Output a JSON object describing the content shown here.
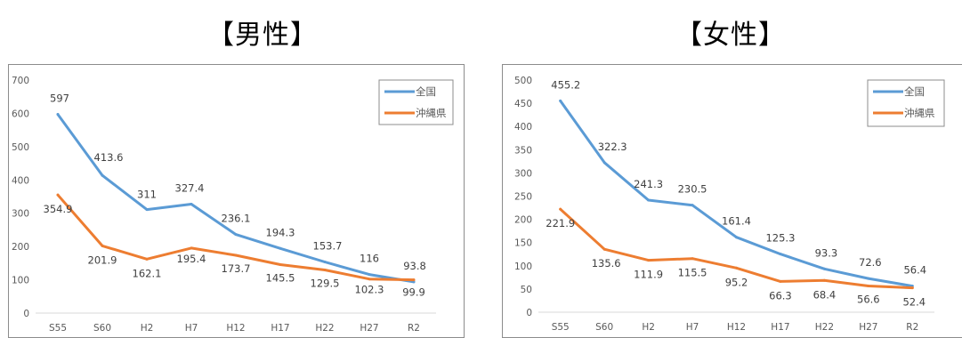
{
  "headings": {
    "left": "【男性】",
    "right": "【女性】"
  },
  "colors": {
    "national": "#5b9bd5",
    "okinawa": "#ed7d31",
    "axis": "#d9d9d9",
    "frame": "#8c8c8c"
  },
  "chart_data": [
    {
      "type": "line",
      "title": "",
      "categories": [
        "S55",
        "S60",
        "H2",
        "H7",
        "H12",
        "H17",
        "H22",
        "H27",
        "R2"
      ],
      "ylim": [
        0,
        700
      ],
      "yticks": [
        0,
        100,
        200,
        300,
        400,
        500,
        600,
        700
      ],
      "grid": false,
      "legend": "top-right",
      "series": [
        {
          "name": "全国",
          "values": [
            597,
            413.6,
            311,
            327.4,
            236.1,
            194.3,
            153.7,
            116,
            93.8
          ],
          "labels": [
            "597",
            "413.6",
            "311",
            "327.4",
            "236.1",
            "194.3",
            "153.7",
            "116",
            "93.8"
          ]
        },
        {
          "name": "沖縄県",
          "values": [
            354.9,
            201.9,
            162.1,
            195.4,
            173.7,
            145.5,
            129.5,
            102.3,
            99.9
          ],
          "labels": [
            "354.9",
            "201.9",
            "162.1",
            "195.4",
            "173.7",
            "145.5",
            "129.5",
            "102.3",
            "99.9"
          ]
        }
      ]
    },
    {
      "type": "line",
      "title": "",
      "categories": [
        "S55",
        "S60",
        "H2",
        "H7",
        "H12",
        "H17",
        "H22",
        "H27",
        "R2"
      ],
      "ylim": [
        0,
        500
      ],
      "yticks": [
        0,
        50,
        100,
        150,
        200,
        250,
        300,
        350,
        400,
        450,
        500
      ],
      "grid": false,
      "legend": "top-right",
      "series": [
        {
          "name": "全国",
          "values": [
            455.2,
            322.3,
            241.3,
            230.5,
            161.4,
            125.3,
            93.3,
            72.6,
            56.4
          ],
          "labels": [
            "455.2",
            "322.3",
            "241.3",
            "230.5",
            "161.4",
            "125.3",
            "93.3",
            "72.6",
            "56.4"
          ]
        },
        {
          "name": "沖縄県",
          "values": [
            221.9,
            135.6,
            111.9,
            115.5,
            95.2,
            66.3,
            68.4,
            56.6,
            52.4
          ],
          "labels": [
            "221.9",
            "135.6",
            "111.9",
            "115.5",
            "95.2",
            "66.3",
            "68.4",
            "56.6",
            "52.4"
          ]
        }
      ]
    }
  ]
}
